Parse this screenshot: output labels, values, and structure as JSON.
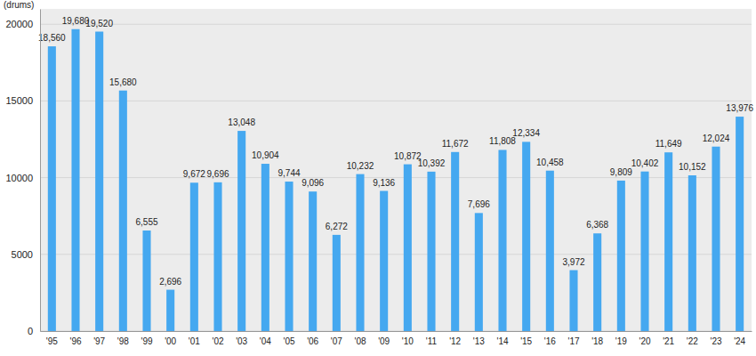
{
  "chart_data": {
    "type": "bar",
    "y_label": "(drums)",
    "categories": [
      "'95",
      "'96",
      "'97",
      "'98",
      "'99",
      "'00",
      "'01",
      "'02",
      "'03",
      "'04",
      "'05",
      "'06",
      "'07",
      "'08",
      "'09",
      "'10",
      "'11",
      "'12",
      "'13",
      "'14",
      "'15",
      "'16",
      "'17",
      "'18",
      "'19",
      "'20",
      "'21",
      "'22",
      "'23",
      "'24"
    ],
    "values": [
      18560,
      19680,
      19520,
      15680,
      6555,
      2696,
      9672,
      9696,
      13048,
      10904,
      9744,
      9096,
      6272,
      10232,
      9136,
      10872,
      10392,
      11672,
      7696,
      11808,
      12334,
      10458,
      3972,
      6368,
      9809,
      10402,
      11649,
      10152,
      12024,
      13976
    ],
    "value_labels": [
      "18,560",
      "19,680",
      "19,520",
      "15,680",
      "6,555",
      "2,696",
      "9,672",
      "9,696",
      "13,048",
      "10,904",
      "9,744",
      "9,096",
      "6,272",
      "10,232",
      "9,136",
      "10,872",
      "10,392",
      "11,672",
      "7,696",
      "11,808",
      "12,334",
      "10,458",
      "3,972",
      "6,368",
      "9,809",
      "10,402",
      "11,649",
      "10,152",
      "12,024",
      "13,976"
    ],
    "color": "#45a8f0",
    "ylim": [
      0,
      21000
    ],
    "yticks": [
      0,
      5000,
      10000,
      15000,
      20000
    ],
    "grid": true,
    "data_labels": true
  }
}
